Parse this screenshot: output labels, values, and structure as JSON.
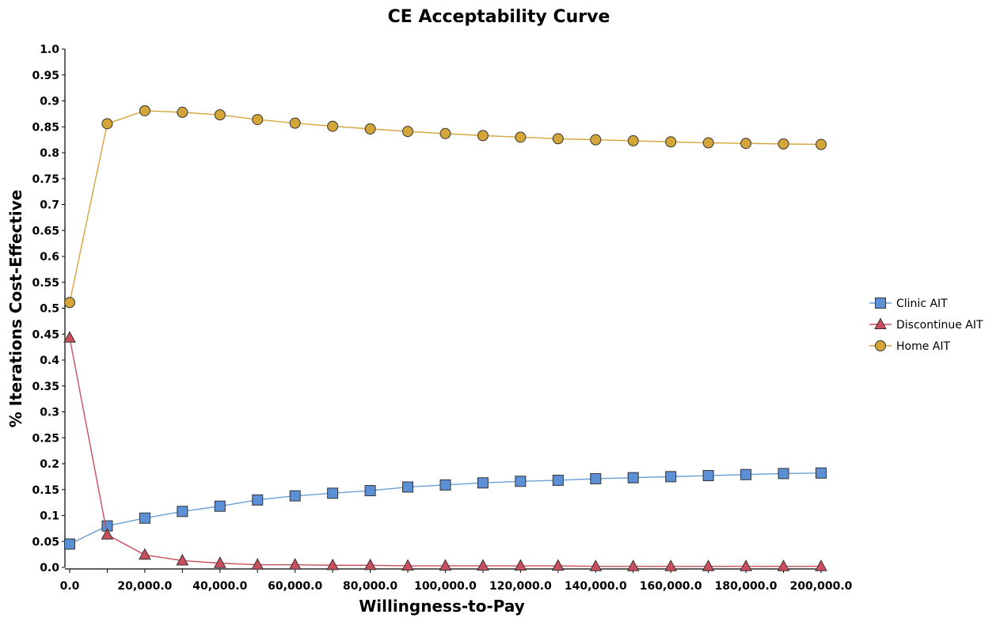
{
  "chart_data": {
    "type": "line",
    "title": "CE Acceptability Curve",
    "xlabel": "Willingness-to-Pay",
    "ylabel": "% Iterations Cost-Effective",
    "xlim": [
      0,
      200000
    ],
    "ylim": [
      0,
      1.0
    ],
    "x_ticks": [
      "0.0",
      "20,000.0",
      "40,000.0",
      "60,000.0",
      "80,000.0",
      "100,000.0",
      "120,000.0",
      "140,000.0",
      "160,000.0",
      "180,000.0",
      "200,000.0"
    ],
    "x_tick_values": [
      0,
      20000,
      40000,
      60000,
      80000,
      100000,
      120000,
      140000,
      160000,
      180000,
      200000
    ],
    "y_ticks": [
      "0.0",
      "0.05",
      "0.1",
      "0.15",
      "0.2",
      "0.25",
      "0.3",
      "0.35",
      "0.4",
      "0.45",
      "0.5",
      "0.55",
      "0.6",
      "0.65",
      "0.7",
      "0.75",
      "0.8",
      "0.85",
      "0.9",
      "0.95",
      "1.0"
    ],
    "y_tick_values": [
      0,
      0.05,
      0.1,
      0.15,
      0.2,
      0.25,
      0.3,
      0.35,
      0.4,
      0.45,
      0.5,
      0.55,
      0.6,
      0.65,
      0.7,
      0.75,
      0.8,
      0.85,
      0.9,
      0.95,
      1.0
    ],
    "grid": false,
    "legend_position": "right",
    "x": [
      0,
      10000,
      20000,
      30000,
      40000,
      50000,
      60000,
      70000,
      80000,
      90000,
      100000,
      110000,
      120000,
      130000,
      140000,
      150000,
      160000,
      170000,
      180000,
      190000,
      200000
    ],
    "series": [
      {
        "name": "Clinic AIT",
        "marker": "square",
        "color": "#5b8fd6",
        "line_color": "#6a9fd4",
        "values": [
          0.045,
          0.08,
          0.095,
          0.108,
          0.118,
          0.13,
          0.138,
          0.143,
          0.148,
          0.155,
          0.159,
          0.163,
          0.166,
          0.168,
          0.171,
          0.173,
          0.175,
          0.177,
          0.179,
          0.181,
          0.182
        ]
      },
      {
        "name": "Discontinue AIT",
        "marker": "triangle",
        "color": "#c94f5e",
        "line_color": "#c94f5e",
        "values": [
          0.443,
          0.063,
          0.024,
          0.013,
          0.008,
          0.005,
          0.005,
          0.004,
          0.004,
          0.003,
          0.003,
          0.003,
          0.003,
          0.003,
          0.002,
          0.002,
          0.002,
          0.002,
          0.002,
          0.002,
          0.002
        ]
      },
      {
        "name": "Home AIT",
        "marker": "circle",
        "color": "#d4a63a",
        "line_color": "#d4a63a",
        "values": [
          0.511,
          0.856,
          0.881,
          0.878,
          0.873,
          0.864,
          0.857,
          0.851,
          0.846,
          0.841,
          0.837,
          0.833,
          0.83,
          0.827,
          0.825,
          0.823,
          0.821,
          0.819,
          0.818,
          0.817,
          0.816
        ]
      }
    ]
  }
}
